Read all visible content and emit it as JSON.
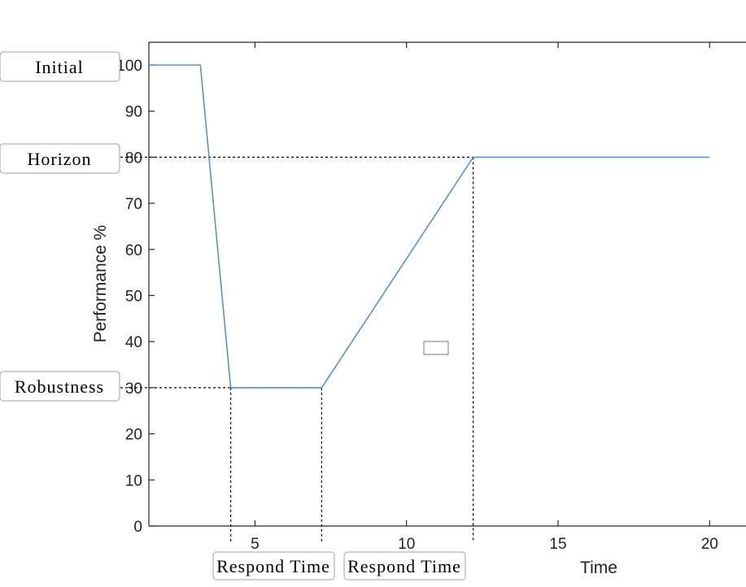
{
  "chart_data": {
    "type": "line",
    "title": "",
    "xlabel": "Time",
    "ylabel": "Performance %",
    "xlim": [
      1.5,
      21.2
    ],
    "ylim": [
      0,
      100
    ],
    "xticks": [
      5,
      10,
      15,
      20
    ],
    "yticks": [
      0,
      10,
      20,
      30,
      40,
      50,
      60,
      70,
      80,
      90,
      100
    ],
    "ytick_labels": [
      "0",
      "10",
      "20",
      "30",
      "40",
      "50",
      "60",
      "70",
      "80",
      "90",
      "100"
    ],
    "grid": false,
    "series": [
      {
        "color": "#5b8fc7",
        "x": [
          1.5,
          3.2,
          4.2,
          7.2,
          12.2,
          20
        ],
        "y": [
          100,
          100,
          30,
          30,
          80,
          80
        ]
      }
    ],
    "guides": {
      "horizontal": [
        {
          "y": 80,
          "x_to": 12.2
        },
        {
          "y": 30,
          "x_to": 7.2
        }
      ],
      "vertical": [
        4.2,
        7.2,
        12.2
      ]
    },
    "annotations": {
      "initial": "Initial",
      "horizon": "Horizon",
      "robustness": "Robustness",
      "respond_time_1": "Respond Time",
      "respond_time_2": "Respond Time"
    }
  }
}
